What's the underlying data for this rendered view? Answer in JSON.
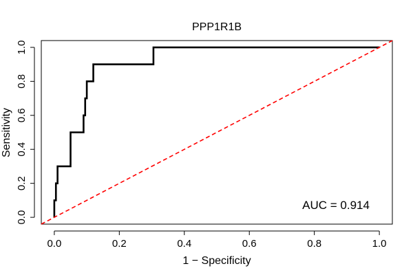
{
  "chart_data": {
    "type": "line",
    "title": "PPP1R1B",
    "xlabel": "1 − Specificity",
    "ylabel": "Sensitivity",
    "xlim": [
      -0.04,
      1.04
    ],
    "ylim": [
      -0.04,
      1.04
    ],
    "x_ticks": [
      0.0,
      0.2,
      0.4,
      0.6,
      0.8,
      1.0
    ],
    "x_tick_labels": [
      "0.0",
      "0.2",
      "0.4",
      "0.6",
      "0.8",
      "1.0"
    ],
    "y_ticks": [
      0.0,
      0.2,
      0.4,
      0.6,
      0.8,
      1.0
    ],
    "y_tick_labels": [
      "0.0",
      "0.2",
      "0.4",
      "0.6",
      "0.8",
      "1.0"
    ],
    "grid": false,
    "series": [
      {
        "color": "#000000",
        "style": "solid",
        "x": [
          0.0,
          0.0,
          0.005,
          0.005,
          0.01,
          0.01,
          0.05,
          0.05,
          0.09,
          0.09,
          0.095,
          0.095,
          0.1,
          0.1,
          0.12,
          0.12,
          0.305,
          0.305,
          1.0
        ],
        "y": [
          0.0,
          0.1,
          0.1,
          0.2,
          0.2,
          0.3,
          0.3,
          0.5,
          0.5,
          0.6,
          0.6,
          0.7,
          0.7,
          0.8,
          0.8,
          0.9,
          0.9,
          1.0,
          1.0
        ]
      },
      {
        "color": "#ff0000",
        "style": "dashed",
        "x": [
          -0.04,
          1.04
        ],
        "y": [
          -0.04,
          1.04
        ]
      }
    ],
    "annotations": [
      {
        "text": "AUC = 0.914",
        "x": 0.97,
        "y": 0.05,
        "anchor": "end"
      }
    ]
  }
}
